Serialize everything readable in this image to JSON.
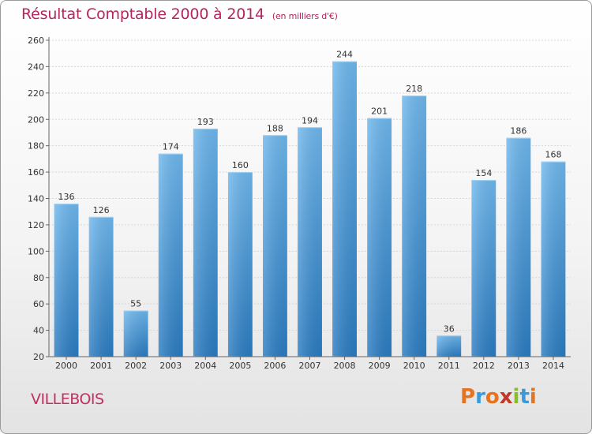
{
  "header": {
    "title": "Résultat Comptable 2000 à 2014",
    "unit": "(en milliers d'€)"
  },
  "footer": {
    "commune": "VILLEBOIS",
    "logo_text": "Proxiti"
  },
  "colors": {
    "title": "#b3265e",
    "bar_top": "#6fb8ee",
    "bar_bottom": "#2a7cc2",
    "logo_letters": [
      "#e8731f",
      "#3a9ad9",
      "#e8731f",
      "#c0392b",
      "#8bbd2a",
      "#3a9ad9",
      "#e8731f"
    ]
  },
  "chart_data": {
    "type": "bar",
    "title": "Résultat Comptable 2000 à 2014",
    "subtitle": "(en milliers d'€)",
    "categories": [
      "2000",
      "2001",
      "2002",
      "2003",
      "2004",
      "2005",
      "2006",
      "2007",
      "2008",
      "2009",
      "2010",
      "2011",
      "2012",
      "2013",
      "2014"
    ],
    "values": [
      136,
      126,
      55,
      174,
      193,
      160,
      188,
      194,
      244,
      201,
      218,
      36,
      154,
      186,
      168
    ],
    "xlabel": "",
    "ylabel": "",
    "ylim": [
      20,
      260
    ],
    "yticks": [
      20,
      40,
      60,
      80,
      100,
      120,
      140,
      160,
      180,
      200,
      220,
      240,
      260
    ],
    "grid": "horizontal",
    "legend": "none"
  }
}
